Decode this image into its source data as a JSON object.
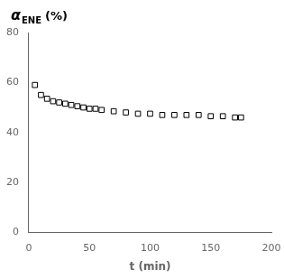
{
  "chart_data": {
    "type": "scatter",
    "x": [
      5,
      10,
      15,
      20,
      25,
      30,
      35,
      40,
      45,
      50,
      55,
      60,
      70,
      80,
      90,
      100,
      110,
      120,
      130,
      140,
      150,
      160,
      170,
      175
    ],
    "values": [
      59,
      55,
      53.5,
      52.5,
      52,
      51.5,
      51,
      50.5,
      50,
      49.5,
      49.5,
      49,
      48.5,
      48,
      47.5,
      47.5,
      47,
      47,
      47,
      47,
      46.5,
      46.5,
      46,
      46
    ],
    "x_label": "t (min)",
    "annotations": [
      "α",
      "ENE",
      "(%)"
    ],
    "xlim": [
      0,
      200
    ],
    "ylim": [
      0,
      80
    ],
    "xticks": [
      0,
      50,
      100,
      150,
      200
    ],
    "yticks": [
      0,
      20,
      40,
      60,
      80
    ],
    "marker": "square",
    "color": "black",
    "grid": false
  }
}
